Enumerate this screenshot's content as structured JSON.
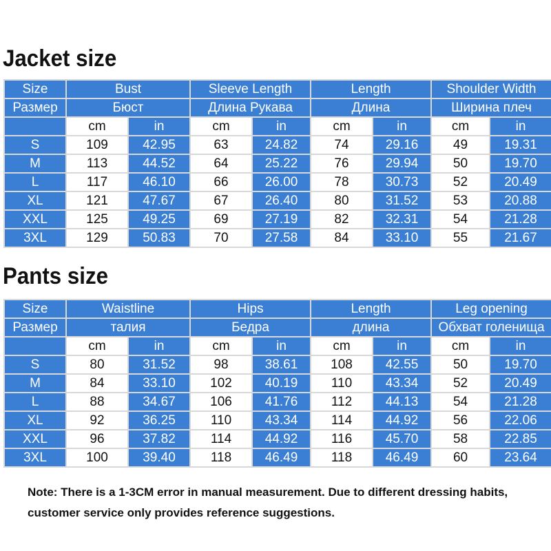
{
  "jacket": {
    "title": "Jacket size",
    "header_rows": [
      [
        "Size",
        "Bust",
        "Sleeve Length",
        "Length",
        "Shoulder Width"
      ],
      [
        "Размер",
        "Бюст",
        "Длина Рукава",
        "Длина",
        "Ширина плеч"
      ]
    ],
    "units": [
      "cm",
      "in"
    ],
    "rows": [
      [
        "S",
        "109",
        "42.95",
        "63",
        "24.82",
        "74",
        "29.16",
        "49",
        "19.31"
      ],
      [
        "M",
        "113",
        "44.52",
        "64",
        "25.22",
        "76",
        "29.94",
        "50",
        "19.70"
      ],
      [
        "L",
        "117",
        "46.10",
        "66",
        "26.00",
        "78",
        "30.73",
        "52",
        "20.49"
      ],
      [
        "XL",
        "121",
        "47.67",
        "67",
        "26.40",
        "80",
        "31.52",
        "53",
        "20.88"
      ],
      [
        "XXL",
        "125",
        "49.25",
        "69",
        "27.19",
        "82",
        "32.31",
        "54",
        "21.28"
      ],
      [
        "3XL",
        "129",
        "50.83",
        "70",
        "27.58",
        "84",
        "33.10",
        "55",
        "21.67"
      ]
    ]
  },
  "pants": {
    "title": "Pants size",
    "header_rows": [
      [
        "Size",
        "Waistline",
        "Hips",
        "Length",
        "Leg opening"
      ],
      [
        "Размер",
        "талия",
        "Бедра",
        "длина",
        "Обхват голенища"
      ]
    ],
    "units": [
      "cm",
      "in"
    ],
    "rows": [
      [
        "S",
        "80",
        "31.52",
        "98",
        "38.61",
        "108",
        "42.55",
        "50",
        "19.70"
      ],
      [
        "M",
        "84",
        "33.10",
        "102",
        "40.19",
        "110",
        "43.34",
        "52",
        "20.49"
      ],
      [
        "L",
        "88",
        "34.67",
        "106",
        "41.76",
        "112",
        "44.13",
        "54",
        "21.28"
      ],
      [
        "XL",
        "92",
        "36.25",
        "110",
        "43.34",
        "114",
        "44.92",
        "56",
        "22.06"
      ],
      [
        "XXL",
        "96",
        "37.82",
        "114",
        "44.92",
        "116",
        "45.70",
        "58",
        "22.85"
      ],
      [
        "3XL",
        "100",
        "39.40",
        "118",
        "46.49",
        "118",
        "46.49",
        "60",
        "23.64"
      ]
    ]
  },
  "note": [
    "Note: There is a 1-3CM error in manual measurement. Due to different dressing habits,",
    "customer service only provides reference suggestions."
  ]
}
